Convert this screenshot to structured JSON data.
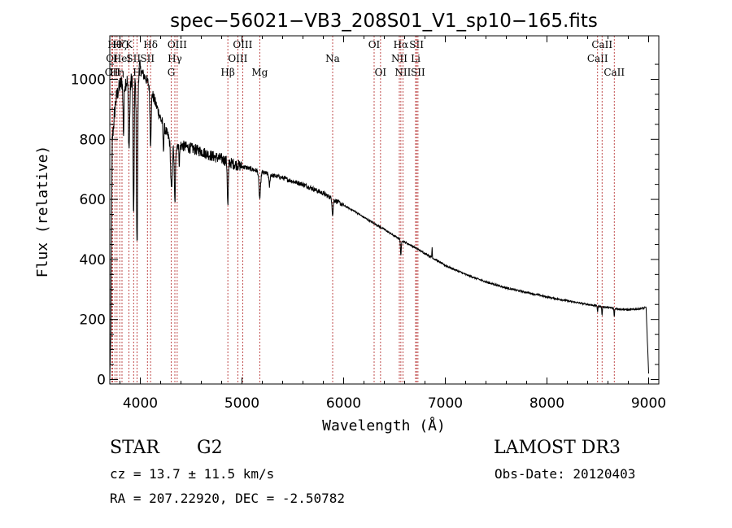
{
  "chart_data": {
    "type": "line",
    "title": "spec−56021−VB3_208S01_V1_sp10−165.fits",
    "xlabel": "Wavelength (Å)",
    "ylabel": "Flux (relative)",
    "xlim": [
      3700,
      9100
    ],
    "ylim": [
      -15,
      1145
    ],
    "xticks": [
      4000,
      5000,
      6000,
      7000,
      8000,
      9000
    ],
    "yticks": [
      0,
      200,
      400,
      600,
      800,
      1000
    ],
    "xtick_labels": [
      "4000",
      "5000",
      "6000",
      "7000",
      "8000",
      "9000"
    ],
    "ytick_labels": [
      "0",
      "200",
      "400",
      "600",
      "800",
      "1000"
    ],
    "continuum": {
      "x": [
        3700,
        3710,
        3725,
        3745,
        3760,
        3780,
        3800,
        3830,
        3860,
        3880,
        3900,
        3920,
        3940,
        3960,
        3990,
        4020,
        4060,
        4100,
        4150,
        4200,
        4260,
        4300,
        4400,
        4500,
        4600,
        4700,
        4800,
        4900,
        5000,
        5100,
        5200,
        5300,
        5400,
        5500,
        5600,
        5700,
        5800,
        5900,
        6000,
        6100,
        6200,
        6300,
        6400,
        6500,
        6600,
        6700,
        6800,
        7000,
        7200,
        7400,
        7600,
        7800,
        8000,
        8200,
        8400,
        8500,
        8600,
        8700,
        8800,
        8900,
        8980
      ],
      "y": [
        0,
        250,
        800,
        880,
        930,
        960,
        980,
        1000,
        990,
        1000,
        980,
        1010,
        1000,
        990,
        1040,
        1020,
        1000,
        970,
        920,
        870,
        820,
        790,
        780,
        770,
        760,
        745,
        735,
        720,
        710,
        700,
        690,
        680,
        672,
        660,
        650,
        635,
        620,
        600,
        580,
        562,
        540,
        520,
        500,
        478,
        458,
        440,
        420,
        380,
        350,
        325,
        305,
        290,
        275,
        262,
        250,
        245,
        240,
        235,
        232,
        235,
        240
      ]
    },
    "absorption_features": [
      {
        "center": 3835,
        "depth": 180,
        "width": 5
      },
      {
        "center": 3889,
        "depth": 220,
        "width": 6
      },
      {
        "center": 3934,
        "depth": 480,
        "width": 5
      },
      {
        "center": 3968,
        "depth": 560,
        "width": 6
      },
      {
        "center": 4101,
        "depth": 180,
        "width": 6
      },
      {
        "center": 4227,
        "depth": 80,
        "width": 4
      },
      {
        "center": 4307,
        "depth": 160,
        "width": 8
      },
      {
        "center": 4340,
        "depth": 200,
        "width": 6
      },
      {
        "center": 4384,
        "depth": 60,
        "width": 4
      },
      {
        "center": 4861,
        "depth": 150,
        "width": 5
      },
      {
        "center": 5175,
        "depth": 90,
        "width": 8
      },
      {
        "center": 5270,
        "depth": 40,
        "width": 5
      },
      {
        "center": 5892,
        "depth": 55,
        "width": 5
      },
      {
        "center": 6563,
        "depth": 55,
        "width": 4
      },
      {
        "center": 8498,
        "depth": 20,
        "width": 3
      },
      {
        "center": 8542,
        "depth": 30,
        "width": 3
      },
      {
        "center": 8662,
        "depth": 28,
        "width": 3
      }
    ],
    "emission_features": [
      {
        "center": 6870,
        "height": 35,
        "width": 2
      }
    ],
    "tail_drop": {
      "start": 8975,
      "end": 9000,
      "value": 20
    },
    "line_markers": {
      "color": "#b02020",
      "row_values": [
        1105,
        1058,
        1012
      ],
      "lines": [
        {
          "x": 3720,
          "row": 1,
          "label": "OI"
        },
        {
          "x": 3727,
          "row": 2,
          "label": "OII"
        },
        {
          "x": 3750,
          "row": 0,
          "label": "Hθ"
        },
        {
          "x": 3771,
          "row": 2,
          "label": "Hη"
        },
        {
          "x": 3798,
          "row": 0,
          "label": "Hζ"
        },
        {
          "x": 3820,
          "row": 1,
          "label": "HeI"
        },
        {
          "x": 3889,
          "row": 0,
          "label": "K"
        },
        {
          "x": 3934,
          "row": 1,
          "label": "SII"
        },
        {
          "x": 3968,
          "row": 2,
          "label": "H"
        },
        {
          "x": 4101,
          "row": 0,
          "label": "Hδ"
        },
        {
          "x": 4070,
          "row": 1,
          "label": "SII"
        },
        {
          "x": 4304,
          "row": 2,
          "label": "G"
        },
        {
          "x": 4340,
          "row": 1,
          "label": "Hγ"
        },
        {
          "x": 4363,
          "row": 0,
          "label": "OIII"
        },
        {
          "x": 4861,
          "row": 2,
          "label": "Hβ"
        },
        {
          "x": 4959,
          "row": 1,
          "label": "OIII"
        },
        {
          "x": 5007,
          "row": 0,
          "label": "OIII"
        },
        {
          "x": 5175,
          "row": 2,
          "label": "Mg"
        },
        {
          "x": 5892,
          "row": 1,
          "label": "Na"
        },
        {
          "x": 6300,
          "row": 0,
          "label": "OI"
        },
        {
          "x": 6363,
          "row": 2,
          "label": "OI"
        },
        {
          "x": 6548,
          "row": 1,
          "label": "NII"
        },
        {
          "x": 6563,
          "row": 0,
          "label": "Hα"
        },
        {
          "x": 6583,
          "row": 2,
          "label": "NII"
        },
        {
          "x": 6708,
          "row": 1,
          "label": "Li"
        },
        {
          "x": 6717,
          "row": 0,
          "label": "SII"
        },
        {
          "x": 6731,
          "row": 2,
          "label": "SII"
        },
        {
          "x": 8498,
          "row": 1,
          "label": "CaII"
        },
        {
          "x": 8542,
          "row": 0,
          "label": "CaII"
        },
        {
          "x": 8662,
          "row": 2,
          "label": "CaII"
        }
      ]
    }
  },
  "footer": {
    "object_class": "STAR",
    "subclass": "G2",
    "survey": "LAMOST DR3",
    "cz": "cz = 13.7 ± 11.5 km/s",
    "obs_date": "Obs-Date: 20120403",
    "radec": "RA = 207.22920, DEC =  -2.50782"
  }
}
